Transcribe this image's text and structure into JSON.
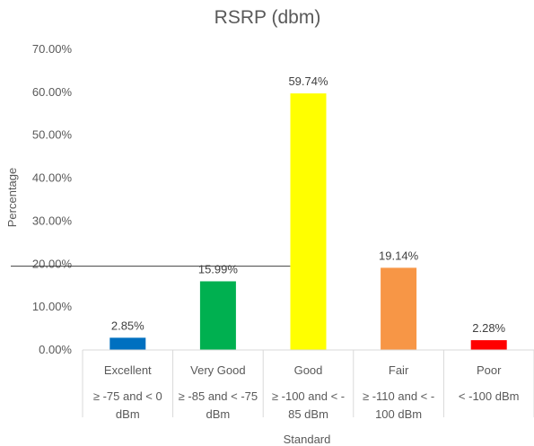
{
  "chart_data": {
    "type": "bar",
    "title": "RSRP (dbm)",
    "xlabel": "Standard",
    "ylabel": "Percentage",
    "ylim": [
      0,
      70
    ],
    "yticks": [
      "0.00%",
      "10.00%",
      "20.00%",
      "30.00%",
      "40.00%",
      "50.00%",
      "60.00%",
      "70.00%"
    ],
    "grid": false,
    "legend": "none",
    "categories": [
      {
        "name": "Excellent",
        "range": [
          "≥ -75 and < 0",
          "dBm"
        ]
      },
      {
        "name": "Very  Good",
        "range": [
          "≥ -85 and < -75",
          "dBm"
        ]
      },
      {
        "name": "Good",
        "range": [
          "≥ -100 and < -",
          "85 dBm"
        ]
      },
      {
        "name": "Fair",
        "range": [
          "≥ -110 and < -",
          "100 dBm"
        ]
      },
      {
        "name": "Poor",
        "range": [
          "< -100 dBm"
        ]
      }
    ],
    "values": [
      2.85,
      15.99,
      59.74,
      19.14,
      2.28
    ],
    "data_labels": [
      "2.85%",
      "15.99%",
      "59.74%",
      "19.14%",
      "2.28%"
    ],
    "colors": [
      "#0070c0",
      "#00b050",
      "#ffff00",
      "#f79646",
      "#ff0000"
    ],
    "reference_line": 19.5
  }
}
